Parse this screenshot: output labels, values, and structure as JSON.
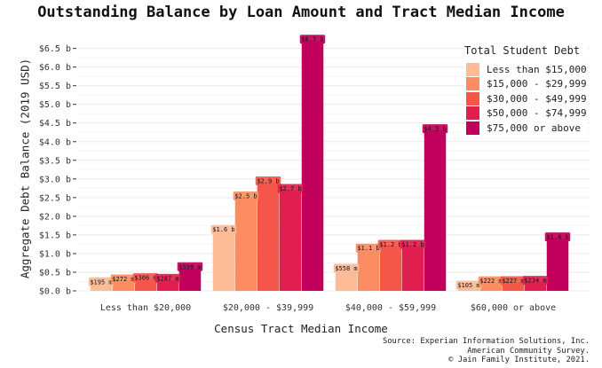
{
  "chart_data": {
    "type": "bar",
    "title": "Outstanding Balance by Loan Amount and Tract Median Income",
    "xlabel": "Census Tract Median Income",
    "ylabel": "Aggregate Debt Balance (2019 USD)",
    "categories": [
      "Less than $20,000",
      "$20,000 - $39,999",
      "$40,000 - $59,999",
      "$60,000 or above"
    ],
    "legend_title": "Total Student Debt",
    "legend_position": "top-right",
    "ylim": [
      0,
      6.8
    ],
    "yticks": [
      0,
      0.5,
      1.0,
      1.5,
      2.0,
      2.5,
      3.0,
      3.5,
      4.0,
      4.5,
      5.0,
      5.5,
      6.0,
      6.5
    ],
    "ytick_labels": [
      "$0.0 b",
      "$0.5 b",
      "$1.0 b",
      "$1.5 b",
      "$2.0 b",
      "$2.5 b",
      "$3.0 b",
      "$3.5 b",
      "$4.0 b",
      "$4.5 b",
      "$5.0 b",
      "$5.5 b",
      "$6.0 b",
      "$6.5 b"
    ],
    "grid": true,
    "series": [
      {
        "name": "Less than $15,000",
        "color": "#fdbb96",
        "values": [
          0.195,
          1.6,
          0.558,
          0.105
        ],
        "labels": [
          "$195 m",
          "$1.6 b",
          "$558 m",
          "$105 m"
        ]
      },
      {
        "name": "$15,000 - $29,999",
        "color": "#fc8d62",
        "values": [
          0.272,
          2.5,
          1.1,
          0.222
        ],
        "labels": [
          "$272 m",
          "$2.5 b",
          "$1.1 b",
          "$222 m"
        ]
      },
      {
        "name": "$30,000 - $49,999",
        "color": "#f5564a",
        "values": [
          0.306,
          2.9,
          1.2,
          0.227
        ],
        "labels": [
          "$306 m",
          "$2.9 b",
          "$1.2 b",
          "$227 m"
        ]
      },
      {
        "name": "$50,000 - $74,999",
        "color": "#e01e4f",
        "values": [
          0.287,
          2.7,
          1.2,
          0.234
        ],
        "labels": [
          "$287 m",
          "$2.7 b",
          "$1.2 b",
          "$234 m"
        ]
      },
      {
        "name": "$75,000 or above",
        "color": "#c0005a",
        "values": [
          0.599,
          6.7,
          4.3,
          1.4
        ],
        "labels": [
          "$599 m",
          "$6.7 b",
          "$4.3 b",
          "$1.4 b"
        ]
      }
    ],
    "source_lines": [
      "Source: Experian Information Solutions, Inc.",
      "American Community Survey.",
      "© Jain Family Institute, 2021."
    ]
  }
}
